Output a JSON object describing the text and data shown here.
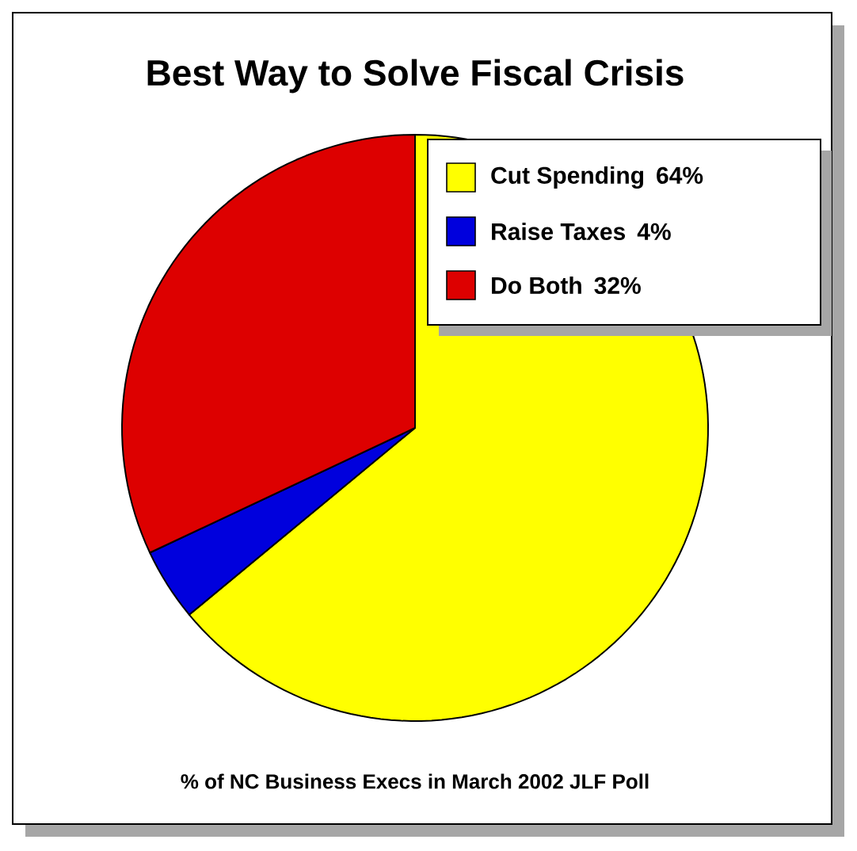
{
  "chart_data": {
    "type": "pie",
    "title": "Best Way to Solve Fiscal Crisis",
    "categories": [
      "Cut Spending",
      "Raise Taxes",
      "Do Both"
    ],
    "values": [
      64,
      4,
      32
    ],
    "value_labels": [
      "64%",
      "4%",
      "32%"
    ],
    "colors": [
      "#ffff00",
      "#0000dd",
      "#dd0000"
    ],
    "legend": "top right",
    "annotations": [
      "% of NC Business Execs in March 2002 JLF Poll"
    ]
  }
}
